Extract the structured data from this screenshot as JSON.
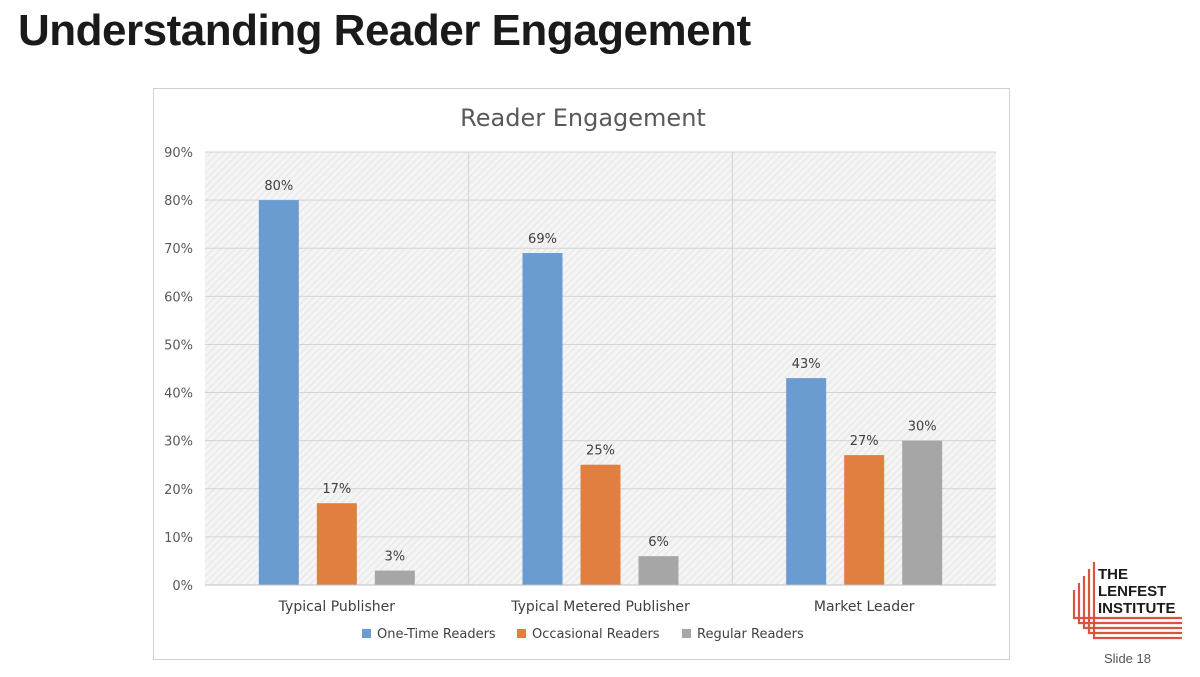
{
  "slide": {
    "title": "Understanding Reader Engagement",
    "slide_number": "Slide 18"
  },
  "logo": {
    "lines": [
      "THE",
      "LENFEST",
      "INSTITUTE"
    ],
    "accent_color": "#d9533f"
  },
  "chart_data": {
    "type": "bar",
    "title": "Reader Engagement",
    "categories": [
      "Typical Publisher",
      "Typical Metered Publisher",
      "Market Leader"
    ],
    "series": [
      {
        "name": "One-Time Readers",
        "color": "#6a9bd1",
        "values": [
          80,
          69,
          43
        ]
      },
      {
        "name": "Occasional Readers",
        "color": "#e07f3f",
        "values": [
          17,
          25,
          27
        ]
      },
      {
        "name": "Regular Readers",
        "color": "#a6a6a6",
        "values": [
          3,
          6,
          30
        ]
      }
    ],
    "ylim": [
      0,
      90
    ],
    "ytick_step": 10,
    "value_suffix": "%",
    "grid": true,
    "legend_position": "bottom"
  }
}
